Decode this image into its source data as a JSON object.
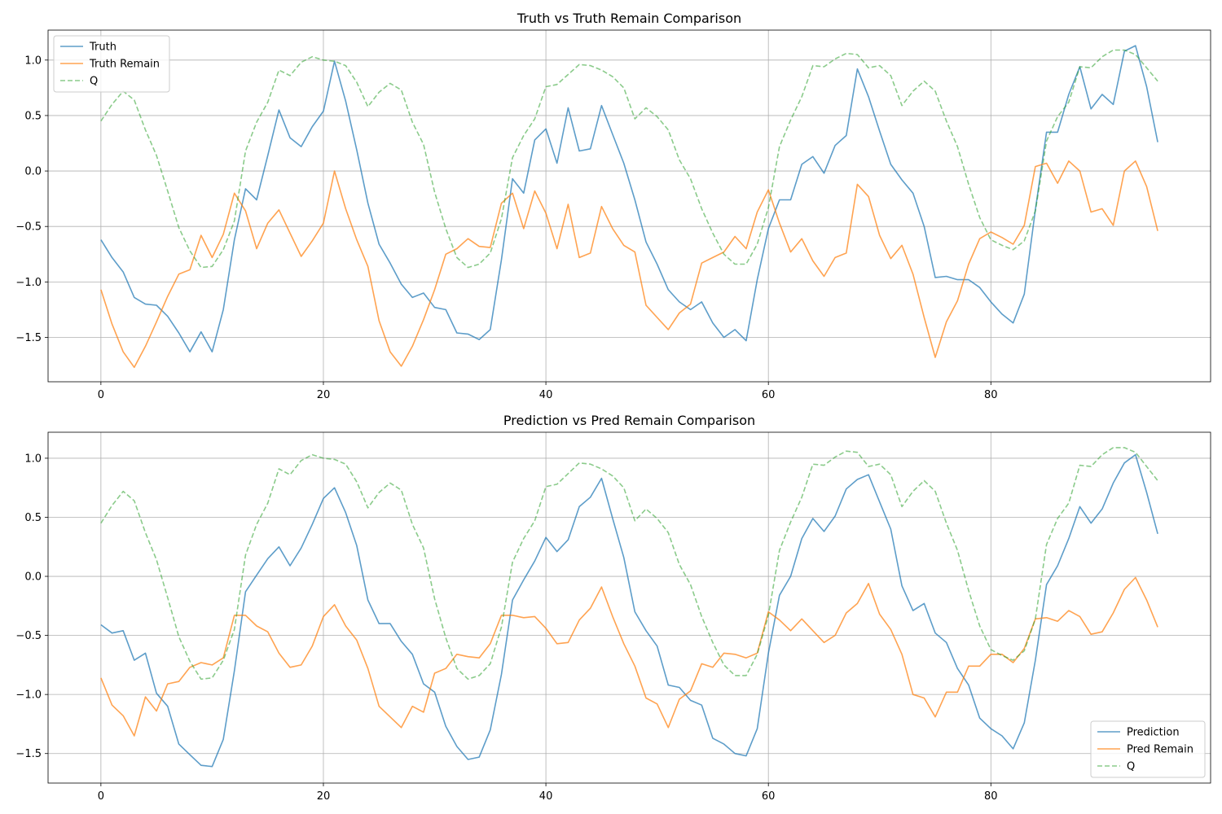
{
  "chart_data": [
    {
      "type": "line",
      "title": "Truth vs Truth Remain Comparison",
      "xlabel": "",
      "ylabel": "",
      "xlim": [
        -4.75,
        99.75
      ],
      "ylim": [
        -1.9,
        1.27
      ],
      "xticks": [
        0,
        20,
        40,
        60,
        80
      ],
      "yticks": [
        -1.5,
        -1.0,
        -0.5,
        0.0,
        0.5,
        1.0
      ],
      "ytick_labels": [
        "−1.5",
        "−1.0",
        "−0.5",
        "0.0",
        "0.5",
        "1.0"
      ],
      "grid": true,
      "legend_position": "top-left",
      "series": [
        {
          "name": "Truth",
          "color": "#1f77b4",
          "dash": "solid",
          "values": [
            -0.62,
            -0.78,
            -0.91,
            -1.14,
            -1.2,
            -1.21,
            -1.31,
            -1.46,
            -1.63,
            -1.45,
            -1.63,
            -1.25,
            -0.62,
            -0.16,
            -0.26,
            0.14,
            0.55,
            0.3,
            0.22,
            0.4,
            0.54,
            0.99,
            0.63,
            0.19,
            -0.29,
            -0.66,
            -0.83,
            -1.02,
            -1.14,
            -1.1,
            -1.23,
            -1.25,
            -1.46,
            -1.47,
            -1.52,
            -1.43,
            -0.8,
            -0.07,
            -0.2,
            0.28,
            0.38,
            0.07,
            0.57,
            0.18,
            0.2,
            0.59,
            0.33,
            0.07,
            -0.26,
            -0.64,
            -0.84,
            -1.07,
            -1.18,
            -1.25,
            -1.18,
            -1.37,
            -1.5,
            -1.43,
            -1.53,
            -0.98,
            -0.52,
            -0.26,
            -0.26,
            0.06,
            0.13,
            -0.02,
            0.23,
            0.32,
            0.92,
            0.67,
            0.36,
            0.06,
            -0.08,
            -0.2,
            -0.5,
            -0.96,
            -0.95,
            -0.98,
            -0.98,
            -1.05,
            -1.18,
            -1.29,
            -1.37,
            -1.11,
            -0.35,
            0.35,
            0.35,
            0.69,
            0.94,
            0.56,
            0.69,
            0.6,
            1.08,
            1.13,
            0.76,
            0.26
          ]
        },
        {
          "name": "Truth Remain",
          "color": "#ff7f0e",
          "dash": "solid",
          "values": [
            -1.07,
            -1.38,
            -1.63,
            -1.77,
            -1.58,
            -1.36,
            -1.13,
            -0.93,
            -0.89,
            -0.58,
            -0.78,
            -0.57,
            -0.2,
            -0.36,
            -0.7,
            -0.47,
            -0.35,
            -0.56,
            -0.77,
            -0.63,
            -0.47,
            0.0,
            -0.34,
            -0.62,
            -0.86,
            -1.35,
            -1.63,
            -1.76,
            -1.58,
            -1.34,
            -1.07,
            -0.75,
            -0.7,
            -0.61,
            -0.68,
            -0.69,
            -0.29,
            -0.2,
            -0.52,
            -0.18,
            -0.38,
            -0.7,
            -0.3,
            -0.78,
            -0.74,
            -0.32,
            -0.52,
            -0.67,
            -0.73,
            -1.21,
            -1.32,
            -1.43,
            -1.28,
            -1.2,
            -0.83,
            -0.78,
            -0.73,
            -0.59,
            -0.7,
            -0.37,
            -0.17,
            -0.47,
            -0.73,
            -0.61,
            -0.81,
            -0.95,
            -0.78,
            -0.74,
            -0.12,
            -0.23,
            -0.58,
            -0.79,
            -0.67,
            -0.93,
            -1.32,
            -1.68,
            -1.36,
            -1.17,
            -0.84,
            -0.61,
            -0.55,
            -0.6,
            -0.66,
            -0.49,
            0.04,
            0.07,
            -0.11,
            0.09,
            0.0,
            -0.37,
            -0.34,
            -0.49,
            0.0,
            0.09,
            -0.14,
            -0.54
          ]
        },
        {
          "name": "Q",
          "color": "#2ca02c",
          "dash": "dashed",
          "values": [
            0.45,
            0.6,
            0.72,
            0.64,
            0.37,
            0.14,
            -0.18,
            -0.51,
            -0.72,
            -0.87,
            -0.86,
            -0.71,
            -0.45,
            0.18,
            0.44,
            0.62,
            0.91,
            0.86,
            0.98,
            1.03,
            1.0,
            0.99,
            0.95,
            0.8,
            0.58,
            0.71,
            0.79,
            0.73,
            0.44,
            0.24,
            -0.19,
            -0.52,
            -0.78,
            -0.87,
            -0.84,
            -0.74,
            -0.43,
            0.12,
            0.32,
            0.47,
            0.76,
            0.78,
            0.87,
            0.96,
            0.95,
            0.91,
            0.85,
            0.75,
            0.47,
            0.57,
            0.49,
            0.37,
            0.1,
            -0.07,
            -0.34,
            -0.56,
            -0.75,
            -0.84,
            -0.84,
            -0.66,
            -0.33,
            0.22,
            0.46,
            0.67,
            0.95,
            0.94,
            1.01,
            1.06,
            1.05,
            0.93,
            0.95,
            0.86,
            0.59,
            0.72,
            0.81,
            0.72,
            0.45,
            0.22,
            -0.12,
            -0.42,
            -0.62,
            -0.67,
            -0.71,
            -0.63,
            -0.36,
            0.27,
            0.49,
            0.62,
            0.94,
            0.93,
            1.03,
            1.09,
            1.09,
            1.05,
            0.93,
            0.81
          ]
        }
      ]
    },
    {
      "type": "line",
      "title": "Prediction vs Pred Remain Comparison",
      "xlabel": "",
      "ylabel": "",
      "xlim": [
        -4.75,
        99.75
      ],
      "ylim": [
        -1.75,
        1.22
      ],
      "xticks": [
        0,
        20,
        40,
        60,
        80
      ],
      "yticks": [
        -1.5,
        -1.0,
        -0.5,
        0.0,
        0.5,
        1.0
      ],
      "ytick_labels": [
        "−1.5",
        "−1.0",
        "−0.5",
        "0.0",
        "0.5",
        "1.0"
      ],
      "grid": true,
      "legend_position": "bottom-right",
      "series": [
        {
          "name": "Prediction",
          "color": "#1f77b4",
          "dash": "solid",
          "values": [
            -0.41,
            -0.48,
            -0.46,
            -0.71,
            -0.65,
            -0.99,
            -1.1,
            -1.42,
            -1.51,
            -1.6,
            -1.61,
            -1.38,
            -0.8,
            -0.13,
            0.01,
            0.15,
            0.25,
            0.09,
            0.24,
            0.44,
            0.66,
            0.75,
            0.54,
            0.26,
            -0.2,
            -0.4,
            -0.4,
            -0.55,
            -0.66,
            -0.91,
            -0.98,
            -1.27,
            -1.44,
            -1.55,
            -1.53,
            -1.3,
            -0.83,
            -0.2,
            -0.03,
            0.13,
            0.33,
            0.21,
            0.31,
            0.59,
            0.67,
            0.83,
            0.49,
            0.16,
            -0.3,
            -0.46,
            -0.59,
            -0.92,
            -0.94,
            -1.05,
            -1.09,
            -1.37,
            -1.42,
            -1.5,
            -1.52,
            -1.29,
            -0.65,
            -0.16,
            0.0,
            0.32,
            0.49,
            0.38,
            0.51,
            0.74,
            0.82,
            0.86,
            0.63,
            0.4,
            -0.08,
            -0.29,
            -0.23,
            -0.48,
            -0.56,
            -0.78,
            -0.92,
            -1.2,
            -1.29,
            -1.35,
            -1.46,
            -1.24,
            -0.71,
            -0.07,
            0.09,
            0.32,
            0.59,
            0.45,
            0.57,
            0.79,
            0.96,
            1.03,
            0.71,
            0.36
          ]
        },
        {
          "name": "Pred Remain",
          "color": "#ff7f0e",
          "dash": "solid",
          "values": [
            -0.86,
            -1.09,
            -1.18,
            -1.35,
            -1.02,
            -1.14,
            -0.91,
            -0.89,
            -0.77,
            -0.73,
            -0.75,
            -0.69,
            -0.33,
            -0.33,
            -0.42,
            -0.47,
            -0.65,
            -0.77,
            -0.75,
            -0.59,
            -0.34,
            -0.24,
            -0.42,
            -0.54,
            -0.78,
            -1.1,
            -1.19,
            -1.28,
            -1.1,
            -1.15,
            -0.82,
            -0.78,
            -0.66,
            -0.68,
            -0.69,
            -0.57,
            -0.33,
            -0.33,
            -0.35,
            -0.34,
            -0.44,
            -0.57,
            -0.56,
            -0.37,
            -0.27,
            -0.09,
            -0.34,
            -0.57,
            -0.76,
            -1.03,
            -1.08,
            -1.28,
            -1.04,
            -0.97,
            -0.74,
            -0.77,
            -0.65,
            -0.66,
            -0.69,
            -0.65,
            -0.3,
            -0.37,
            -0.46,
            -0.36,
            -0.46,
            -0.56,
            -0.5,
            -0.31,
            -0.23,
            -0.06,
            -0.32,
            -0.45,
            -0.66,
            -1.0,
            -1.03,
            -1.19,
            -0.98,
            -0.98,
            -0.76,
            -0.76,
            -0.66,
            -0.66,
            -0.73,
            -0.61,
            -0.36,
            -0.35,
            -0.38,
            -0.29,
            -0.34,
            -0.49,
            -0.47,
            -0.31,
            -0.11,
            -0.01,
            -0.2,
            -0.43
          ]
        },
        {
          "name": "Q",
          "color": "#2ca02c",
          "dash": "dashed",
          "values": [
            0.45,
            0.6,
            0.72,
            0.64,
            0.37,
            0.14,
            -0.18,
            -0.51,
            -0.72,
            -0.87,
            -0.86,
            -0.71,
            -0.45,
            0.18,
            0.44,
            0.62,
            0.91,
            0.86,
            0.98,
            1.03,
            1.0,
            0.99,
            0.95,
            0.8,
            0.58,
            0.71,
            0.79,
            0.73,
            0.44,
            0.24,
            -0.19,
            -0.52,
            -0.78,
            -0.87,
            -0.84,
            -0.74,
            -0.43,
            0.12,
            0.32,
            0.47,
            0.76,
            0.78,
            0.87,
            0.96,
            0.95,
            0.91,
            0.85,
            0.75,
            0.47,
            0.57,
            0.49,
            0.37,
            0.1,
            -0.07,
            -0.34,
            -0.56,
            -0.75,
            -0.84,
            -0.84,
            -0.66,
            -0.33,
            0.22,
            0.46,
            0.67,
            0.95,
            0.94,
            1.01,
            1.06,
            1.05,
            0.93,
            0.95,
            0.86,
            0.59,
            0.72,
            0.81,
            0.72,
            0.45,
            0.22,
            -0.12,
            -0.42,
            -0.62,
            -0.67,
            -0.71,
            -0.63,
            -0.36,
            0.27,
            0.49,
            0.62,
            0.94,
            0.93,
            1.03,
            1.09,
            1.09,
            1.05,
            0.93,
            0.81
          ]
        }
      ]
    }
  ]
}
